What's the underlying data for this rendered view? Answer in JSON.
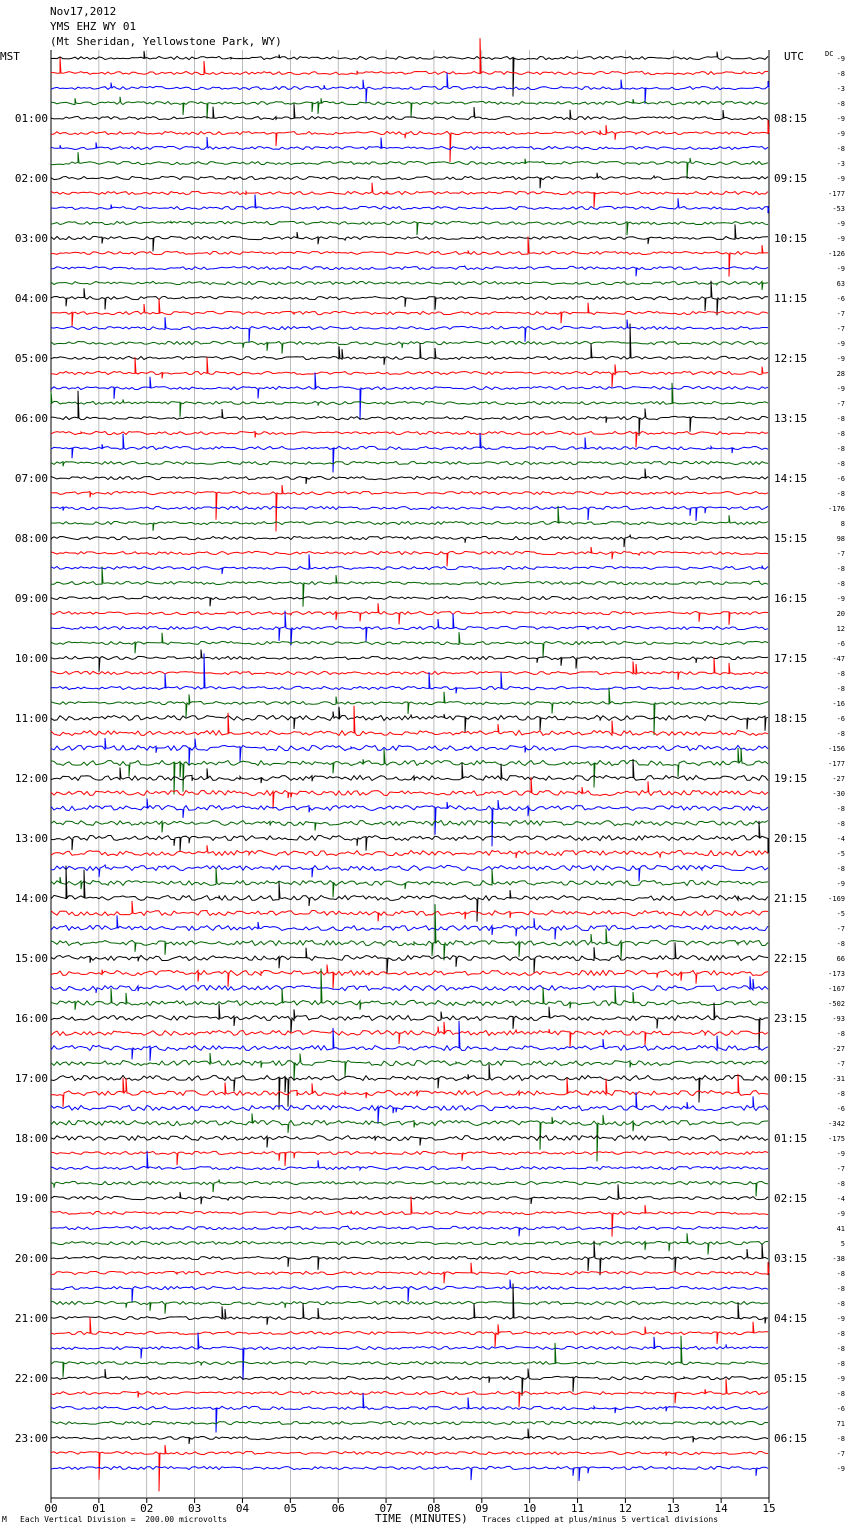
{
  "header": {
    "date": "Nov17,2012",
    "station": "YMS EHZ WY 01",
    "location": "(Mt Sheridan, Yellowstone Park, WY)"
  },
  "left_zone": "MST",
  "right_zone": "UTC",
  "dc_label": "DC",
  "footer": {
    "left_mark": "M",
    "scale_text": "Each Vertical Division =  200.00 microvolts",
    "axis_title": "TIME (MINUTES)",
    "clip_text": "Traces clipped at plus/minus 5 vertical divisions"
  },
  "colors": {
    "trace_cycle": [
      "#000000",
      "#ff0000",
      "#0000ff",
      "#006400"
    ],
    "grid": "#a0a0a0"
  },
  "chart_data": {
    "type": "line",
    "title": "",
    "xlabel": "TIME (MINUTES)",
    "xlim": [
      0,
      15
    ],
    "x_ticks": [
      "00",
      "01",
      "02",
      "03",
      "04",
      "05",
      "06",
      "07",
      "08",
      "09",
      "10",
      "11",
      "12",
      "13",
      "14",
      "15"
    ],
    "rows_per_hour": 4,
    "left_hour_labels": [
      "01:00",
      "02:00",
      "03:00",
      "04:00",
      "05:00",
      "06:00",
      "07:00",
      "08:00",
      "09:00",
      "10:00",
      "11:00",
      "12:00",
      "13:00",
      "14:00",
      "15:00",
      "16:00",
      "17:00",
      "18:00",
      "19:00",
      "20:00",
      "21:00",
      "22:00",
      "23:00"
    ],
    "right_hour_labels": [
      "08:15",
      "09:15",
      "10:15",
      "11:15",
      "12:15",
      "13:15",
      "14:15",
      "15:15",
      "16:15",
      "17:15",
      "18:15",
      "19:15",
      "20:15",
      "21:15",
      "22:15",
      "23:15",
      "00:15",
      "01:15",
      "02:15",
      "03:15",
      "04:15",
      "05:15",
      "06:15"
    ],
    "dc_offsets": [
      -9,
      -8,
      -3,
      -8,
      -9,
      -9,
      -8,
      -3,
      -9,
      -177,
      -53,
      -9,
      -9,
      -126,
      -9,
      63,
      -6,
      -7,
      -7,
      -9,
      -9,
      28,
      -9,
      -7,
      -8,
      -8,
      -8,
      -8,
      -6,
      -8,
      -176,
      8,
      98,
      -7,
      -8,
      -8,
      -9,
      20,
      12,
      -6,
      -47,
      -8,
      -8,
      -16,
      -6,
      -8,
      -156,
      -177,
      -27,
      -30,
      -8,
      -8,
      -4,
      -5,
      -8,
      -9,
      -169,
      -5,
      -7,
      -8,
      66,
      -173,
      -167,
      -502,
      -93,
      -8,
      -27,
      -7,
      -31,
      -8,
      -6,
      -342,
      -175,
      -9,
      -7,
      -8,
      -4,
      -9,
      41,
      5,
      -38,
      -8,
      -8,
      -8,
      -9,
      -8,
      -8,
      -8,
      -9,
      -8,
      -6,
      71,
      -8,
      -7,
      -9
    ]
  }
}
